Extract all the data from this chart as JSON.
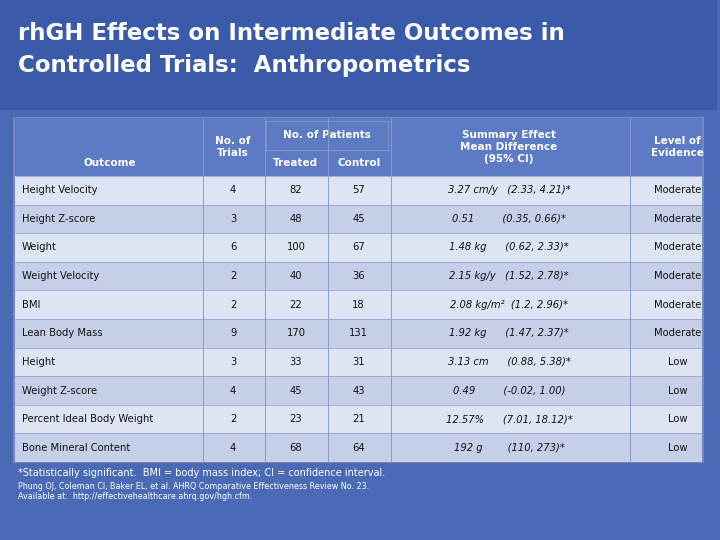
{
  "title_line1": "rhGH Effects on Intermediate Outcomes in",
  "title_line2": "Controlled Trials:  Anthropometrics",
  "title_bg": "#3a5aaa",
  "table_bg_dark": "#5c7bc4",
  "table_border": "#8899cc",
  "footnote_text": "*Statistically significant.  BMI = body mass index; CI = confidence interval.",
  "citation_text": "Phung OJ, Coleman CI, Baker EL, et al. AHRQ Comparative Effectiveness Review No. 23.\nAvailable at:  http://effectivehealthcare.ahrq.gov/hgh.cfm.",
  "rows": [
    [
      "Height Velocity",
      "4",
      "82",
      "57",
      "3.27 cm/y   (2.33, 4.21)*",
      "Moderate"
    ],
    [
      "Height Z-score",
      "3",
      "48",
      "45",
      "0.51         (0.35, 0.66)*",
      "Moderate"
    ],
    [
      "Weight",
      "6",
      "100",
      "67",
      "1.48 kg      (0.62, 2.33)*",
      "Moderate"
    ],
    [
      "Weight Velocity",
      "2",
      "40",
      "36",
      "2.15 kg/y   (1.52, 2.78)*",
      "Moderate"
    ],
    [
      "BMI",
      "2",
      "22",
      "18",
      "2.08 kg/m²  (1.2, 2.96)*",
      "Moderate"
    ],
    [
      "Lean Body Mass",
      "9",
      "170",
      "131",
      "1.92 kg      (1.47, 2.37)*",
      "Moderate"
    ],
    [
      "Height",
      "3",
      "33",
      "31",
      "3.13 cm      (0.88, 5.38)*",
      "Low"
    ],
    [
      "Weight Z-score",
      "4",
      "45",
      "43",
      "0.49         (-0.02, 1.00)",
      "Low"
    ],
    [
      "Percent Ideal Body Weight",
      "2",
      "23",
      "21",
      "12.57%      (7.01, 18.12)*",
      "Low"
    ],
    [
      "Bone Mineral Content",
      "4",
      "68",
      "64",
      "192 g        (110, 273)*",
      "Low"
    ]
  ],
  "outer_bg": "#4a6ab5",
  "row_colors": [
    "#dde4f2",
    "#c5cfe8"
  ]
}
